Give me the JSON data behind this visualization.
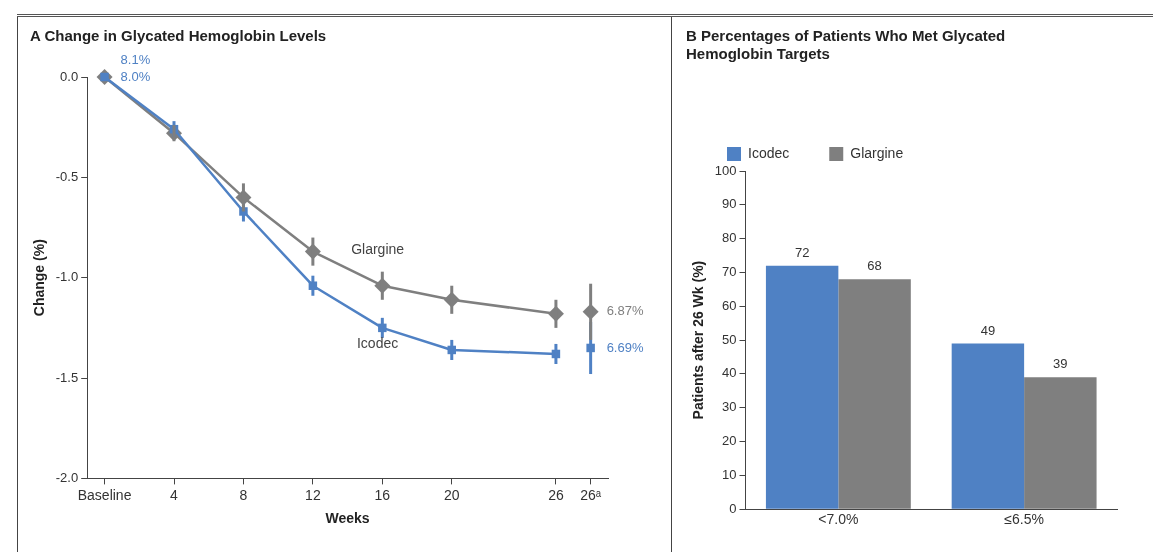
{
  "chart_data": [
    {
      "type": "line",
      "title": "A  Change in Glycated Hemoglobin Levels",
      "xlabel": "Weeks",
      "ylabel": "Change (%)",
      "categories": [
        "Baseline",
        null,
        "4",
        null,
        "8",
        null,
        "12",
        null,
        "16",
        null,
        "20",
        null,
        null,
        "26",
        "26ᵃ"
      ],
      "ylim": [
        -2,
        0
      ],
      "yticks": [
        {
          "value": 0,
          "label": "0.0"
        },
        {
          "value": -0.5,
          "label": "-0.5"
        },
        {
          "value": -1,
          "label": "-1.0"
        },
        {
          "value": -1.5,
          "label": "-1.5"
        },
        {
          "value": -2,
          "label": "-2.0"
        }
      ],
      "grid": false,
      "legend": false,
      "series": [
        {
          "name": "Icodec",
          "color": "#4f81c4",
          "marker": "square",
          "x": [
            "Baseline",
            "4",
            "8",
            "12",
            "16",
            "20",
            "26"
          ],
          "values": [
            0,
            -0.26,
            -0.67,
            -1.04,
            -1.25,
            -1.36,
            -1.38
          ],
          "errors": [
            null,
            0.04,
            0.05,
            0.05,
            0.05,
            0.05,
            0.05
          ]
        },
        {
          "name": "Glargine",
          "color": "#7f7f7f",
          "marker": "diamond",
          "x": [
            "Baseline",
            "4",
            "8",
            "12",
            "16",
            "20",
            "26"
          ],
          "values": [
            0,
            -0.28,
            -0.6,
            -0.87,
            -1.04,
            -1.11,
            -1.18
          ],
          "errors": [
            null,
            0.04,
            0.07,
            0.07,
            0.07,
            0.07,
            0.07
          ]
        },
        {
          "type": "scatter",
          "color": "#4f81c4",
          "marker": "square",
          "x": [
            "26ᵃ"
          ],
          "values": [
            -1.35
          ],
          "errors": [
            0.13
          ]
        },
        {
          "type": "scatter",
          "color": "#7f7f7f",
          "marker": "diamond",
          "x": [
            "26ᵃ"
          ],
          "values": [
            -1.17
          ],
          "errors": [
            0.14
          ]
        }
      ],
      "annotations": [
        {
          "text": "8.1%",
          "x": "Baseline",
          "y": 0
        },
        {
          "text": "8.0%",
          "x": "Baseline",
          "y": 0
        },
        {
          "text": "6.87%",
          "x": "26ᵃ",
          "y": -1.17
        },
        {
          "text": "6.69%",
          "x": "26ᵃ",
          "y": -1.35
        }
      ]
    },
    {
      "type": "bar",
      "title": "B  Percentages of Patients Who Met Glycated Hemoglobin Targets",
      "ylabel": "Patients after 26 Wk (%)",
      "categories": [
        "<7.0%",
        "≤6.5%"
      ],
      "ylim": [
        0,
        100
      ],
      "yticks": [
        0,
        10,
        20,
        30,
        40,
        50,
        60,
        70,
        80,
        90,
        100
      ],
      "grid": false,
      "legend": "top",
      "data_labels": true,
      "series": [
        {
          "name": "Icodec",
          "color": "#4f81c4",
          "values": [
            72,
            49
          ]
        },
        {
          "name": "Glargine",
          "color": "#7f7f7f",
          "values": [
            68,
            39
          ]
        }
      ]
    }
  ]
}
